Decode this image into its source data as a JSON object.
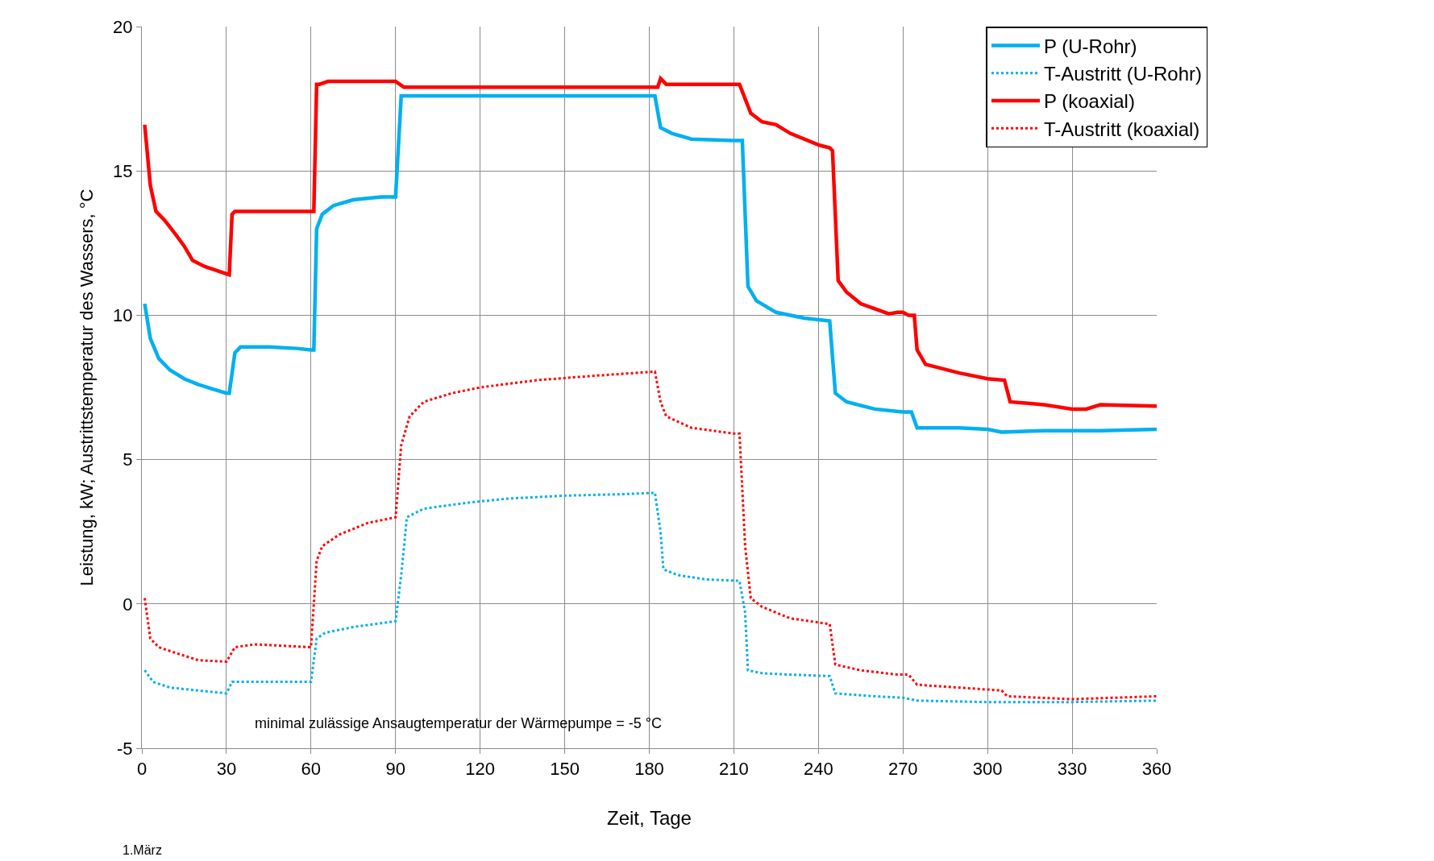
{
  "chart_data": {
    "type": "line",
    "xlabel": "Zeit, Tage",
    "ylabel": "Leistung, kW; Austrittstemperatur des Wassers, °C",
    "xlim": [
      0,
      360
    ],
    "xticks": [
      0,
      30,
      60,
      90,
      120,
      150,
      180,
      210,
      240,
      270,
      300,
      330,
      360
    ],
    "ylim": [
      -5,
      20
    ],
    "yticks": [
      -5,
      0,
      5,
      10,
      15,
      20
    ],
    "grid": true,
    "legend": "top right",
    "annotations": [
      "minimal zulässige Ansaugtemperatur der Wärmepumpe = -5 °C",
      "1.März"
    ],
    "series": [
      {
        "name": "P (U-Rohr)",
        "color": "#00b0f0",
        "line_style": "solid",
        "x": [
          1,
          3,
          6,
          10,
          15,
          20,
          25,
          30,
          31,
          33,
          35,
          45,
          55,
          60,
          61,
          62,
          64,
          68,
          75,
          85,
          90,
          92,
          182,
          184,
          188,
          195,
          210,
          213,
          215,
          218,
          225,
          235,
          244,
          246,
          250,
          260,
          270,
          273,
          275,
          290,
          300,
          305,
          320,
          340,
          360
        ],
        "values": [
          10.4,
          9.2,
          8.5,
          8.1,
          7.8,
          7.6,
          7.45,
          7.3,
          7.3,
          8.7,
          8.9,
          8.9,
          8.85,
          8.8,
          8.8,
          13,
          13.5,
          13.8,
          14.0,
          14.1,
          14.1,
          17.6,
          17.6,
          16.5,
          16.3,
          16.1,
          16.05,
          16.05,
          11,
          10.5,
          10.1,
          9.9,
          9.8,
          7.3,
          7.0,
          6.75,
          6.65,
          6.65,
          6.1,
          6.1,
          6.05,
          5.95,
          6.0,
          6.0,
          6.05
        ]
      },
      {
        "name": "T-Austritt (U-Rohr)",
        "color": "#00b0f0",
        "line_style": "dotted",
        "x": [
          1,
          4,
          10,
          20,
          30,
          32,
          60,
          62,
          65,
          75,
          90,
          92,
          94,
          100,
          115,
          130,
          150,
          170,
          182,
          184,
          185,
          190,
          200,
          212,
          214,
          215,
          220,
          230,
          244,
          246,
          260,
          270,
          275,
          300,
          330,
          360
        ],
        "values": [
          -2.3,
          -2.7,
          -2.9,
          -3.0,
          -3.1,
          -2.7,
          -2.7,
          -1.2,
          -1.0,
          -0.8,
          -0.6,
          1.0,
          3.0,
          3.3,
          3.5,
          3.65,
          3.75,
          3.8,
          3.85,
          2.5,
          1.2,
          1.0,
          0.85,
          0.8,
          -0.3,
          -2.3,
          -2.4,
          -2.45,
          -2.5,
          -3.1,
          -3.2,
          -3.25,
          -3.35,
          -3.4,
          -3.4,
          -3.35
        ]
      },
      {
        "name": "P (koaxial)",
        "color": "#ff0000",
        "line_style": "solid",
        "x": [
          1,
          3,
          5,
          8,
          12,
          15,
          18,
          22,
          28,
          31,
          32,
          33,
          60,
          61,
          62,
          63,
          66,
          85,
          90,
          93,
          180,
          183,
          184,
          186,
          210,
          212,
          214,
          216,
          220,
          225,
          230,
          240,
          244,
          245,
          247,
          250,
          255,
          265,
          268,
          270,
          272,
          274,
          275,
          278,
          290,
          300,
          306,
          308,
          320,
          330,
          335,
          340,
          360
        ],
        "values": [
          16.6,
          14.5,
          13.6,
          13.3,
          12.8,
          12.4,
          11.9,
          11.7,
          11.5,
          11.4,
          13.5,
          13.6,
          13.6,
          13.6,
          18.0,
          18.0,
          18.1,
          18.1,
          18.1,
          17.9,
          17.9,
          17.9,
          18.2,
          18.0,
          18.0,
          18.0,
          17.5,
          17.0,
          16.7,
          16.6,
          16.3,
          15.9,
          15.8,
          15.7,
          11.2,
          10.8,
          10.4,
          10.05,
          10.1,
          10.1,
          10.0,
          10.0,
          8.8,
          8.3,
          8.0,
          7.8,
          7.75,
          7.0,
          6.9,
          6.75,
          6.75,
          6.9,
          6.85
        ]
      },
      {
        "name": "T-Austritt (koaxial)",
        "color": "#ff0000",
        "line_style": "dotted",
        "x": [
          1,
          3,
          6,
          12,
          20,
          30,
          33,
          40,
          60,
          62,
          64,
          70,
          80,
          90,
          92,
          95,
          100,
          110,
          120,
          140,
          160,
          182,
          184,
          186,
          195,
          210,
          212,
          214,
          216,
          220,
          230,
          244,
          246,
          255,
          268,
          272,
          275,
          290,
          305,
          307,
          330,
          360
        ],
        "values": [
          0.2,
          -1.2,
          -1.5,
          -1.7,
          -1.95,
          -2.0,
          -1.5,
          -1.4,
          -1.5,
          1.5,
          2.0,
          2.4,
          2.8,
          3.0,
          5.5,
          6.5,
          7.0,
          7.3,
          7.5,
          7.75,
          7.9,
          8.05,
          7.0,
          6.5,
          6.1,
          5.9,
          5.9,
          2.0,
          0.2,
          -0.1,
          -0.5,
          -0.7,
          -2.1,
          -2.3,
          -2.45,
          -2.45,
          -2.8,
          -2.9,
          -3.0,
          -3.2,
          -3.3,
          -3.2
        ]
      }
    ]
  }
}
